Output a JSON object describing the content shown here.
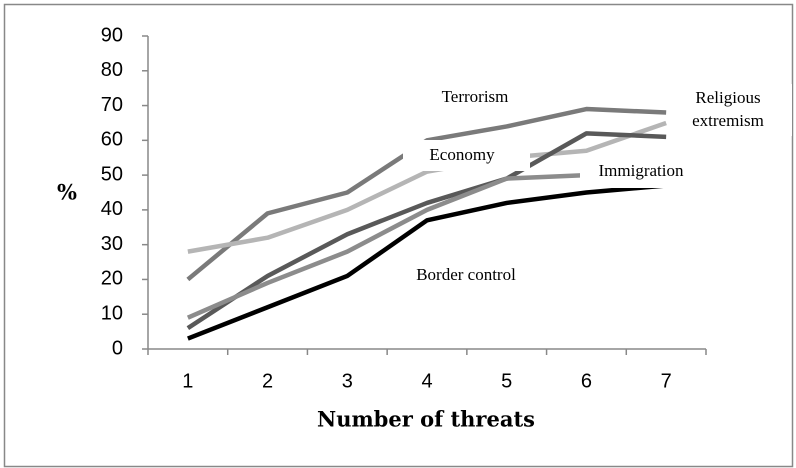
{
  "chart_data": {
    "type": "line",
    "y_label": "%",
    "x_label": "Number of threats",
    "x": [
      1,
      2,
      3,
      4,
      5,
      6,
      7
    ],
    "xlim": [
      0.5,
      7.5
    ],
    "xticks": [
      1,
      2,
      3,
      4,
      5,
      6,
      7
    ],
    "ylim": [
      0,
      90
    ],
    "yticks": [
      0,
      10,
      20,
      30,
      40,
      50,
      60,
      70,
      80,
      90
    ],
    "grid": false,
    "series": [
      {
        "name": "Terrorism",
        "color": "#7a7a7a",
        "values": [
          20,
          39,
          45,
          60,
          64,
          69,
          68
        ]
      },
      {
        "name": "Religious extremism",
        "color": "#b5b5b5",
        "values": [
          28,
          32,
          40,
          51,
          55,
          57,
          65
        ]
      },
      {
        "name": "Economy",
        "color": "#595959",
        "values": [
          6,
          21,
          33,
          42,
          49,
          62,
          61
        ]
      },
      {
        "name": "Immigration",
        "color": "#8c8c8c",
        "values": [
          9,
          19,
          28,
          40,
          49,
          50,
          52
        ]
      },
      {
        "name": "Border control",
        "color": "#000000",
        "values": [
          3,
          12,
          21,
          37,
          42,
          45,
          47
        ]
      }
    ]
  }
}
